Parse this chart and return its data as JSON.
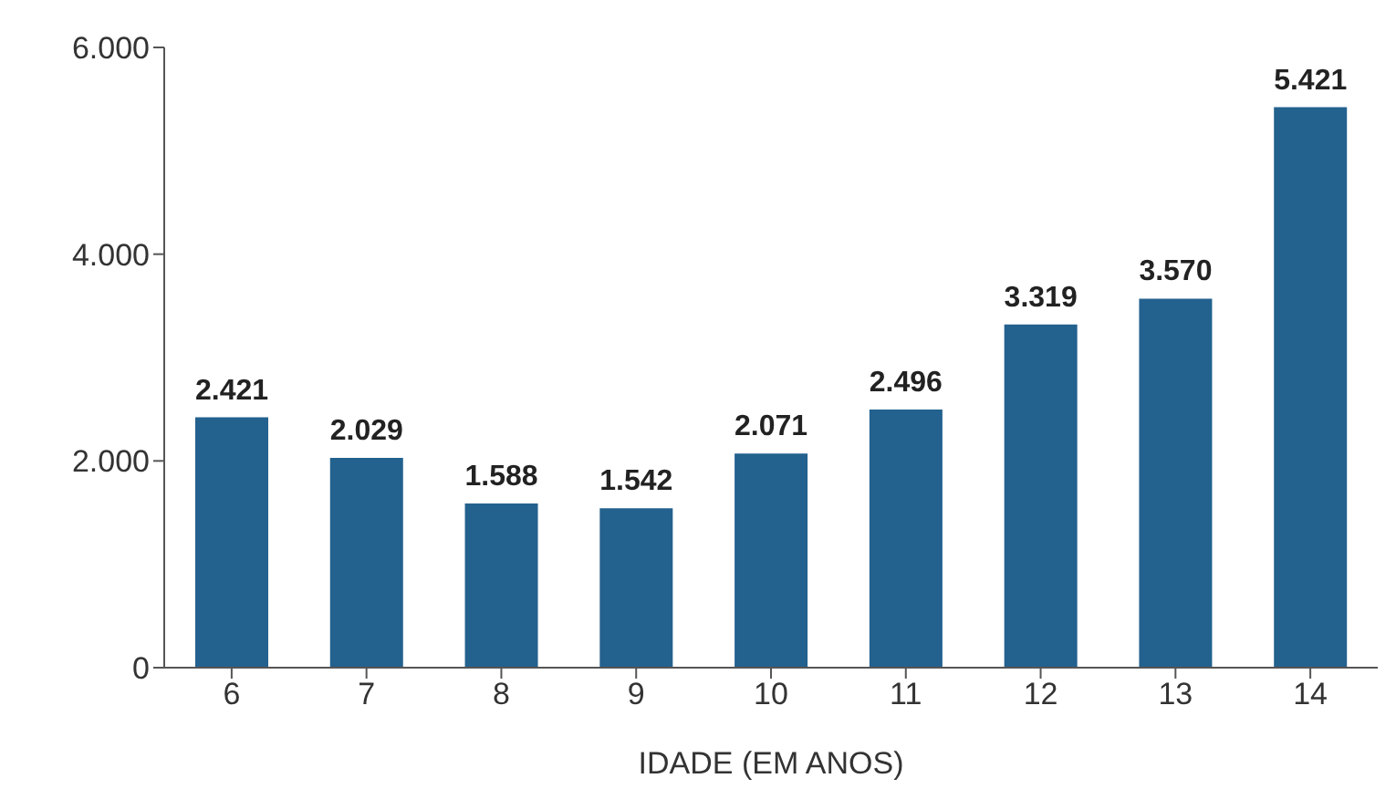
{
  "chart_data": {
    "type": "bar",
    "xlabel": "IDADE (EM ANOS)",
    "categories": [
      "6",
      "7",
      "8",
      "9",
      "10",
      "11",
      "12",
      "13",
      "14"
    ],
    "values": [
      2421,
      2029,
      1588,
      1542,
      2071,
      2496,
      3319,
      3570,
      5421
    ],
    "value_labels": [
      "2.421",
      "2.029",
      "1.588",
      "1.542",
      "2.071",
      "2.496",
      "3.319",
      "3.570",
      "5.421"
    ],
    "color": "#23618e",
    "ylim": [
      0,
      6000
    ],
    "yticks": [
      0,
      {
        "value": 2000,
        "label": "2.000"
      },
      {
        "value": 4000,
        "label": "4.000"
      },
      {
        "value": 6000,
        "label": "6.000"
      }
    ],
    "grid": false,
    "legend": false
  }
}
